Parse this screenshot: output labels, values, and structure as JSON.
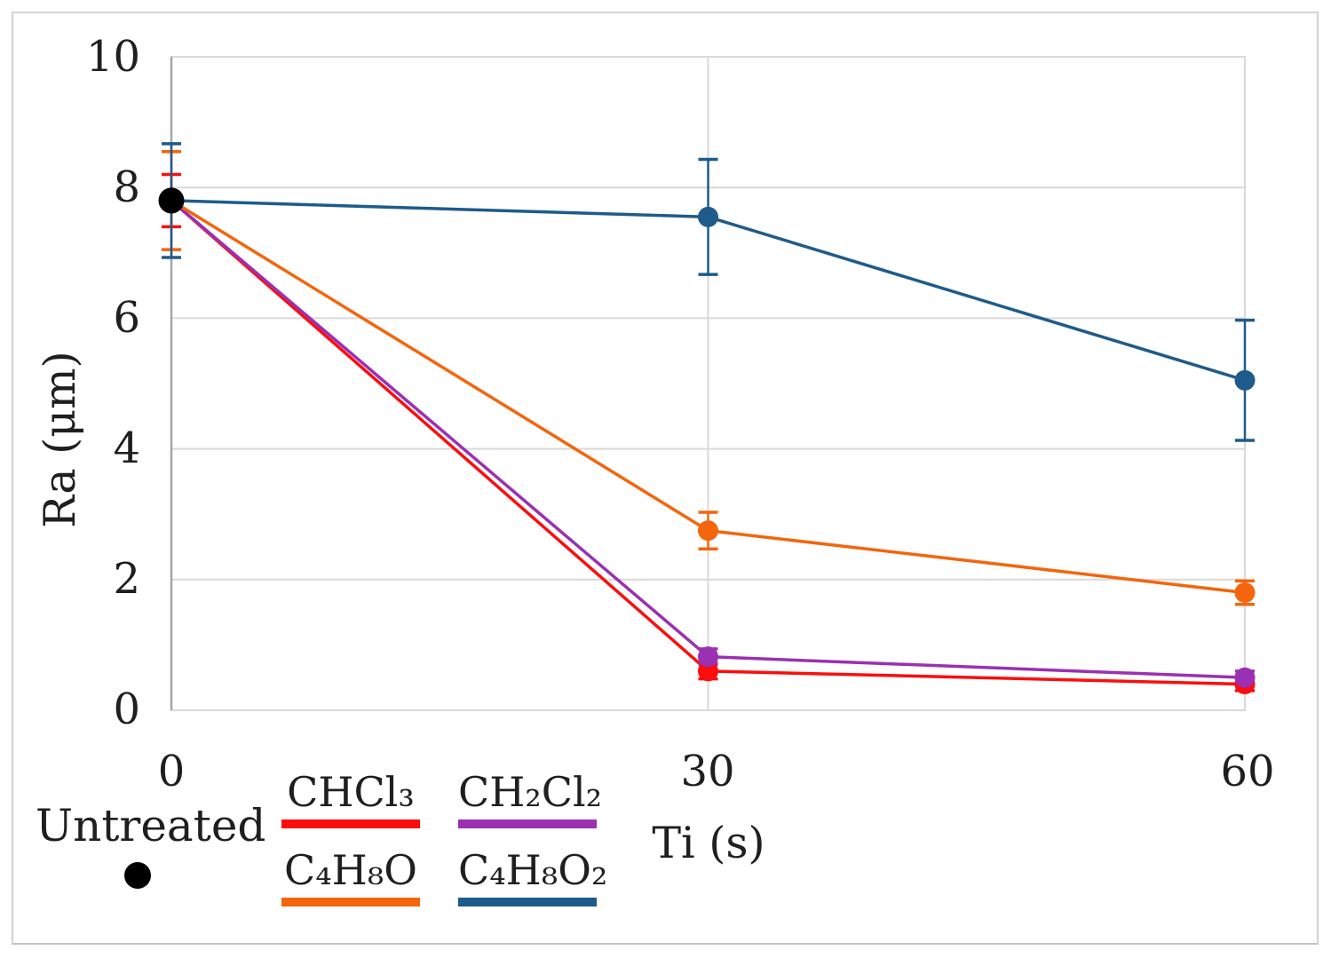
{
  "chart_data": {
    "type": "line",
    "title": "",
    "xlabel": "Ti (s)",
    "ylabel": "Ra (μm)",
    "x": [
      0,
      30,
      60
    ],
    "x_tick_labels": [
      "0",
      "30",
      "60"
    ],
    "y_tick_labels": [
      "0",
      "2",
      "4",
      "6",
      "8",
      "10"
    ],
    "xlim": [
      0,
      60
    ],
    "ylim": [
      0,
      10
    ],
    "grid": "light horizontal gridlines every 2 units, vertical gridlines at each x tick",
    "legend_position": "bottom",
    "series": [
      {
        "name": "CHCl₃",
        "color": "#fd0d0d",
        "values": [
          7.8,
          0.6,
          0.4
        ],
        "error_bars": [
          0.4,
          0.12,
          0.1
        ]
      },
      {
        "name": "CH₂Cl₂",
        "color": "#9b30b3",
        "values": [
          7.8,
          0.82,
          0.5
        ],
        "error_bars": [
          0,
          0.12,
          0.1
        ]
      },
      {
        "name": "C₄H₈O",
        "color": "#f4650c",
        "values": [
          7.8,
          2.75,
          1.8
        ],
        "error_bars": [
          0.75,
          0.28,
          0.18
        ]
      },
      {
        "name": "C₄H₈O₂",
        "color": "#1e5b8a",
        "values": [
          7.8,
          7.55,
          5.05
        ],
        "error_bars": [
          0.87,
          0.88,
          0.92
        ]
      }
    ],
    "untreated": {
      "name": "Untreated",
      "color": "#000000",
      "x": 0,
      "y": 7.8
    }
  },
  "style": {
    "gridline_color": "#d9d9d9",
    "y_axis_line_color": "#a6a6a6",
    "plot_border_color": "#d9d9d9"
  }
}
